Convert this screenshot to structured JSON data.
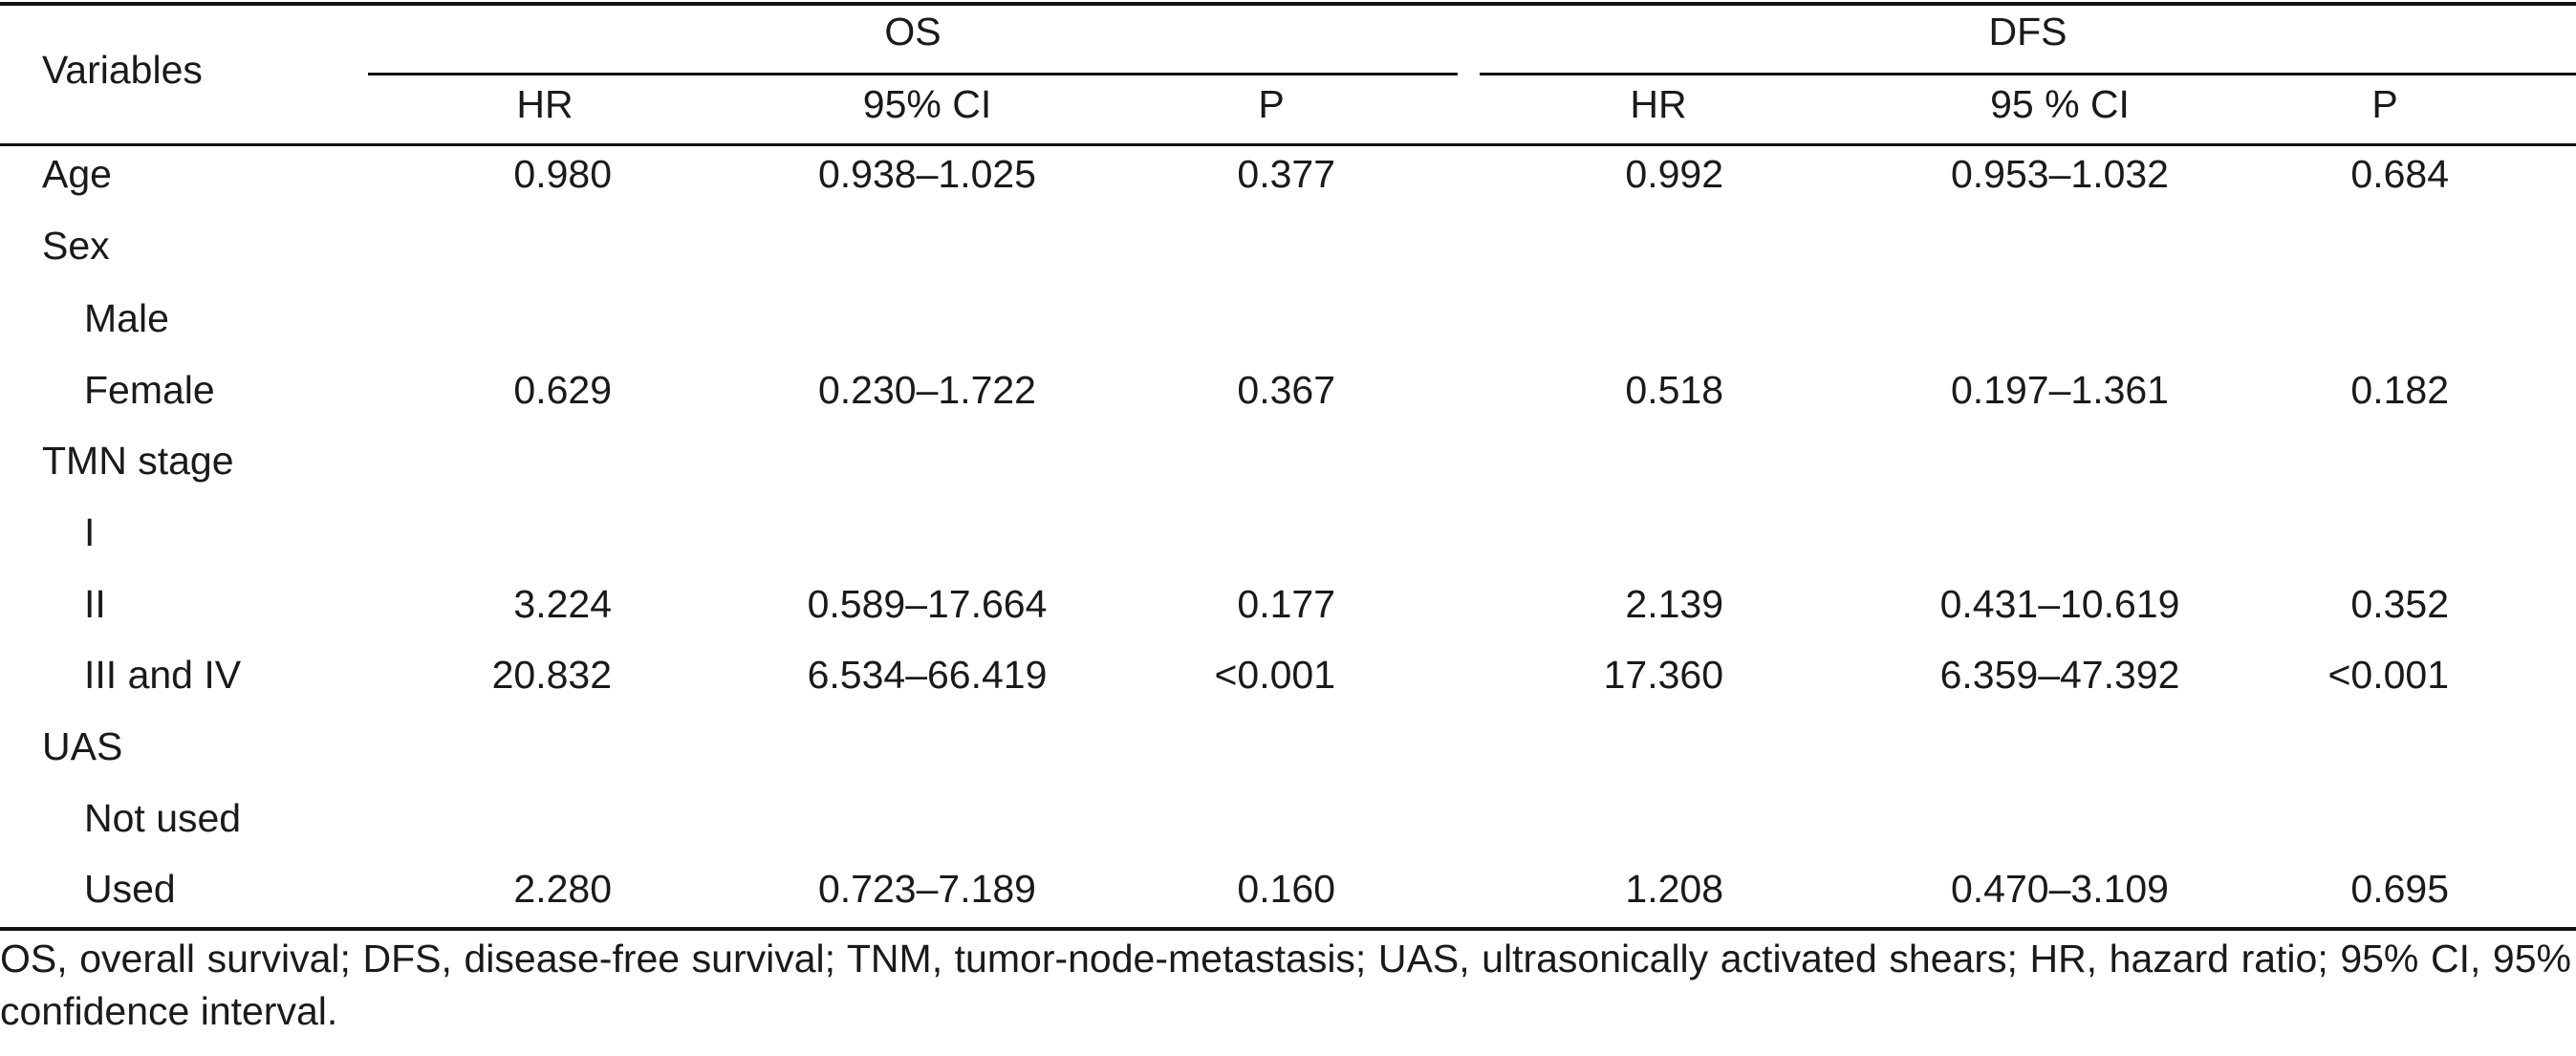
{
  "table": {
    "header": {
      "variables": "Variables",
      "groups": [
        {
          "label": "OS",
          "columns": [
            "HR",
            "95% CI",
            "P"
          ]
        },
        {
          "label": "DFS",
          "columns": [
            "HR",
            "95 % CI",
            "P"
          ]
        }
      ]
    },
    "rows": [
      {
        "label": "Age",
        "indent": 0,
        "os_hr": "0.980",
        "os_ci": "0.938–1.025",
        "os_p": "0.377",
        "dfs_hr": "0.992",
        "dfs_ci": "0.953–1.032",
        "dfs_p": "0.684"
      },
      {
        "label": "Sex",
        "indent": 0,
        "os_hr": "",
        "os_ci": "",
        "os_p": "",
        "dfs_hr": "",
        "dfs_ci": "",
        "dfs_p": ""
      },
      {
        "label": "Male",
        "indent": 1,
        "os_hr": "",
        "os_ci": "",
        "os_p": "",
        "dfs_hr": "",
        "dfs_ci": "",
        "dfs_p": ""
      },
      {
        "label": "Female",
        "indent": 1,
        "os_hr": "0.629",
        "os_ci": "0.230–1.722",
        "os_p": "0.367",
        "dfs_hr": "0.518",
        "dfs_ci": "0.197–1.361",
        "dfs_p": "0.182"
      },
      {
        "label": "TMN stage",
        "indent": 0,
        "os_hr": "",
        "os_ci": "",
        "os_p": "",
        "dfs_hr": "",
        "dfs_ci": "",
        "dfs_p": ""
      },
      {
        "label": "I",
        "indent": 1,
        "os_hr": "",
        "os_ci": "",
        "os_p": "",
        "dfs_hr": "",
        "dfs_ci": "",
        "dfs_p": ""
      },
      {
        "label": "II",
        "indent": 1,
        "os_hr": "3.224",
        "os_ci": "0.589–17.664",
        "os_p": "0.177",
        "dfs_hr": "2.139",
        "dfs_ci": "0.431–10.619",
        "dfs_p": "0.352"
      },
      {
        "label": "III and IV",
        "indent": 1,
        "os_hr": "20.832",
        "os_ci": "6.534–66.419",
        "os_p": "<0.001",
        "dfs_hr": "17.360",
        "dfs_ci": "6.359–47.392",
        "dfs_p": "<0.001"
      },
      {
        "label": "UAS",
        "indent": 0,
        "os_hr": "",
        "os_ci": "",
        "os_p": "",
        "dfs_hr": "",
        "dfs_ci": "",
        "dfs_p": ""
      },
      {
        "label": "Not used",
        "indent": 1,
        "os_hr": "",
        "os_ci": "",
        "os_p": "",
        "dfs_hr": "",
        "dfs_ci": "",
        "dfs_p": ""
      },
      {
        "label": "Used",
        "indent": 1,
        "os_hr": "2.280",
        "os_ci": "0.723–7.189",
        "os_p": "0.160",
        "dfs_hr": "1.208",
        "dfs_ci": "0.470–3.109",
        "dfs_p": "0.695"
      }
    ]
  },
  "footnote": "OS, overall survival; DFS, disease-free survival; TNM, tumor-node-metastasis; UAS, ultrasonically activated shears; HR, hazard ratio; 95% CI, 95% confidence interval."
}
